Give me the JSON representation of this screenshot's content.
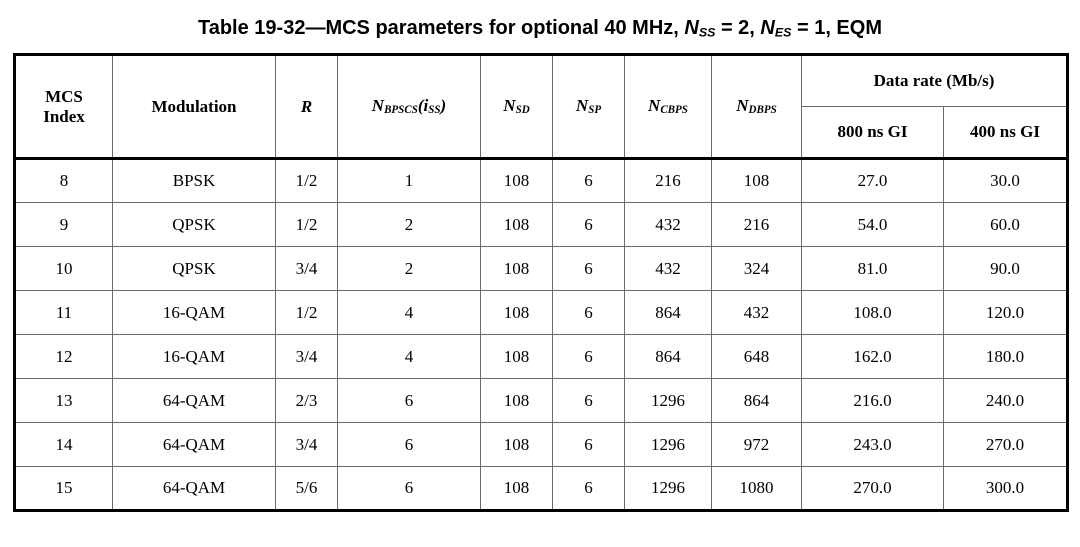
{
  "caption": {
    "parts": [
      {
        "t": "Table 19-32—MCS parameters for optional 40 MHz, ",
        "s": "plain"
      },
      {
        "t": "N",
        "s": "var"
      },
      {
        "t": "SS",
        "s": "subu"
      },
      {
        "t": " = 2, ",
        "s": "plain"
      },
      {
        "t": "N",
        "s": "var"
      },
      {
        "t": "ES",
        "s": "subu"
      },
      {
        "t": " = 1, EQM",
        "s": "plain"
      }
    ]
  },
  "colors": {
    "text": "#000000",
    "background": "#ffffff",
    "border_thick": "#000000",
    "border_thin": "#6b6b6b"
  },
  "table": {
    "headers": {
      "mcs_index": "MCS\nIndex",
      "modulation": "Modulation",
      "r": [
        {
          "t": "R",
          "s": "var"
        }
      ],
      "n_bpscs": [
        {
          "t": "N",
          "s": "var"
        },
        {
          "t": "BPSCS",
          "s": "sub"
        },
        {
          "t": "(i",
          "s": "var"
        },
        {
          "t": "SS",
          "s": "sub"
        },
        {
          "t": ")",
          "s": "var"
        }
      ],
      "n_sd": [
        {
          "t": "N",
          "s": "var"
        },
        {
          "t": "SD",
          "s": "sub"
        }
      ],
      "n_sp": [
        {
          "t": "N",
          "s": "var"
        },
        {
          "t": "SP",
          "s": "sub"
        }
      ],
      "n_cbps": [
        {
          "t": "N",
          "s": "var"
        },
        {
          "t": "CBPS",
          "s": "sub"
        }
      ],
      "n_dbps": [
        {
          "t": "N",
          "s": "var"
        },
        {
          "t": "DBPS",
          "s": "sub"
        }
      ],
      "data_rate": "Data rate (Mb/s)",
      "gi_800": "800 ns GI",
      "gi_400": "400 ns GI"
    },
    "rows": [
      [
        "8",
        "BPSK",
        "1/2",
        "1",
        "108",
        "6",
        "216",
        "108",
        "27.0",
        "30.0"
      ],
      [
        "9",
        "QPSK",
        "1/2",
        "2",
        "108",
        "6",
        "432",
        "216",
        "54.0",
        "60.0"
      ],
      [
        "10",
        "QPSK",
        "3/4",
        "2",
        "108",
        "6",
        "432",
        "324",
        "81.0",
        "90.0"
      ],
      [
        "11",
        "16-QAM",
        "1/2",
        "4",
        "108",
        "6",
        "864",
        "432",
        "108.0",
        "120.0"
      ],
      [
        "12",
        "16-QAM",
        "3/4",
        "4",
        "108",
        "6",
        "864",
        "648",
        "162.0",
        "180.0"
      ],
      [
        "13",
        "64-QAM",
        "2/3",
        "6",
        "108",
        "6",
        "1296",
        "864",
        "216.0",
        "240.0"
      ],
      [
        "14",
        "64-QAM",
        "3/4",
        "6",
        "108",
        "6",
        "1296",
        "972",
        "243.0",
        "270.0"
      ],
      [
        "15",
        "64-QAM",
        "5/6",
        "6",
        "108",
        "6",
        "1296",
        "1080",
        "270.0",
        "300.0"
      ]
    ]
  }
}
